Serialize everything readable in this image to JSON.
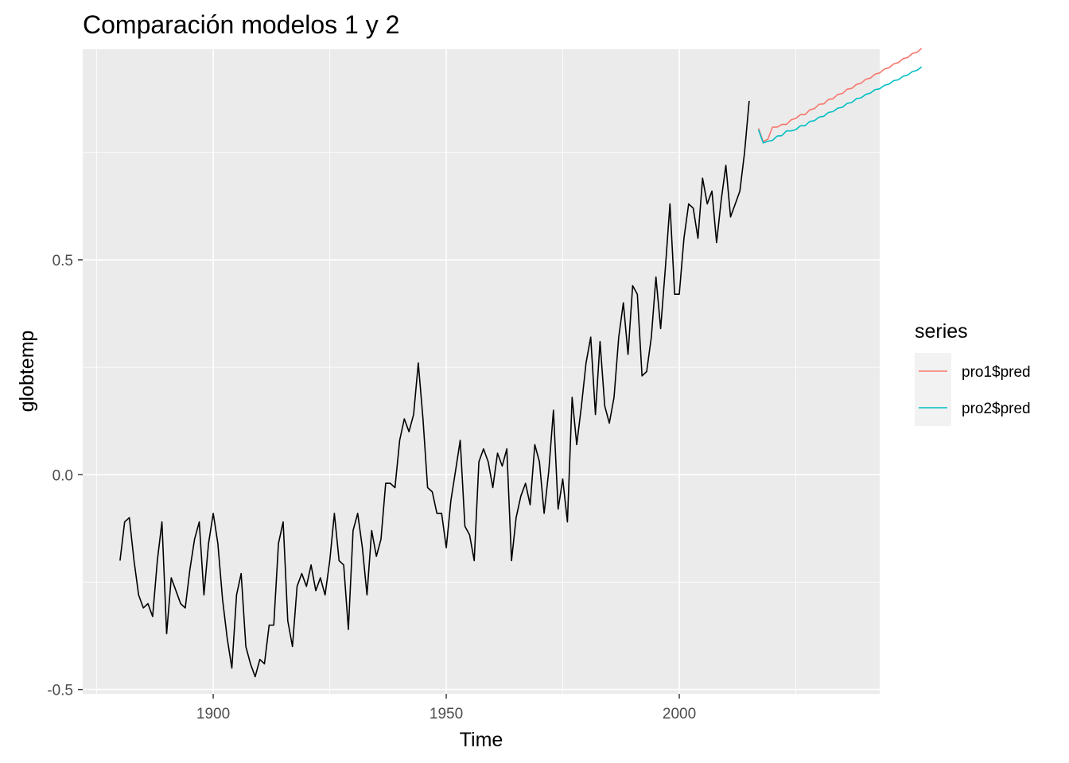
{
  "chart_data": {
    "type": "line",
    "title": "Comparación modelos 1 y 2",
    "xlabel": "Time",
    "ylabel": "globtemp",
    "xlim": [
      1872,
      2043
    ],
    "ylim": [
      -0.51,
      0.99
    ],
    "x_ticks": [
      1900,
      1950,
      2000
    ],
    "x_tick_labels": [
      "1900",
      "1950",
      "2000"
    ],
    "y_ticks": [
      -0.5,
      0.0,
      0.5
    ],
    "y_tick_labels": [
      "-0.5",
      "0.0",
      "0.5"
    ],
    "grid": true,
    "legend": {
      "title": "series",
      "placement": "right",
      "entries": [
        {
          "label": "pro1$pred",
          "color": "#F8766D"
        },
        {
          "label": "pro2$pred",
          "color": "#00BFC4"
        }
      ]
    },
    "observed": {
      "color": "#000000",
      "start": 1880,
      "values": [
        -0.2,
        -0.11,
        -0.1,
        -0.2,
        -0.28,
        -0.31,
        -0.3,
        -0.33,
        -0.2,
        -0.11,
        -0.37,
        -0.24,
        -0.27,
        -0.3,
        -0.31,
        -0.22,
        -0.15,
        -0.11,
        -0.28,
        -0.16,
        -0.09,
        -0.16,
        -0.29,
        -0.38,
        -0.45,
        -0.28,
        -0.23,
        -0.4,
        -0.44,
        -0.47,
        -0.43,
        -0.44,
        -0.35,
        -0.35,
        -0.16,
        -0.11,
        -0.34,
        -0.4,
        -0.26,
        -0.23,
        -0.26,
        -0.21,
        -0.27,
        -0.24,
        -0.28,
        -0.2,
        -0.09,
        -0.2,
        -0.21,
        -0.36,
        -0.13,
        -0.09,
        -0.17,
        -0.28,
        -0.13,
        -0.19,
        -0.15,
        -0.02,
        -0.02,
        -0.03,
        0.08,
        0.13,
        0.1,
        0.14,
        0.26,
        0.13,
        -0.03,
        -0.04,
        -0.09,
        -0.09,
        -0.17,
        -0.06,
        0.01,
        0.08,
        -0.12,
        -0.14,
        -0.2,
        0.03,
        0.06,
        0.03,
        -0.03,
        0.05,
        0.02,
        0.06,
        -0.2,
        -0.1,
        -0.05,
        -0.02,
        -0.07,
        0.07,
        0.03,
        -0.09,
        0.01,
        0.15,
        -0.08,
        -0.01,
        -0.11,
        0.18,
        0.07,
        0.16,
        0.26,
        0.32,
        0.14,
        0.31,
        0.16,
        0.12,
        0.18,
        0.32,
        0.4,
        0.28,
        0.44,
        0.42,
        0.23,
        0.24,
        0.32,
        0.46,
        0.34,
        0.48,
        0.63,
        0.42,
        0.42,
        0.55,
        0.63,
        0.62,
        0.55,
        0.69,
        0.63,
        0.66,
        0.54,
        0.64,
        0.72,
        0.6,
        0.63,
        0.66,
        0.75,
        0.87
      ]
    },
    "series": [
      {
        "name": "pro1$pred",
        "color": "#F8766D",
        "start": 2017,
        "values": [
          0.806,
          0.775,
          0.781,
          0.809,
          0.809,
          0.815,
          0.815,
          0.826,
          0.829,
          0.838,
          0.838,
          0.849,
          0.852,
          0.862,
          0.863,
          0.873,
          0.875,
          0.885,
          0.887,
          0.897,
          0.899,
          0.908,
          0.911,
          0.92,
          0.923,
          0.932,
          0.935,
          0.944,
          0.947,
          0.956,
          0.959,
          0.968,
          0.971,
          0.98,
          0.983,
          0.992
        ]
      },
      {
        "name": "pro2$pred",
        "color": "#00BFC4",
        "start": 2017,
        "values": [
          0.803,
          0.772,
          0.776,
          0.778,
          0.788,
          0.789,
          0.8,
          0.8,
          0.803,
          0.812,
          0.812,
          0.822,
          0.824,
          0.832,
          0.834,
          0.843,
          0.845,
          0.853,
          0.855,
          0.864,
          0.866,
          0.875,
          0.877,
          0.885,
          0.888,
          0.896,
          0.898,
          0.906,
          0.909,
          0.917,
          0.919,
          0.927,
          0.93,
          0.938,
          0.941,
          0.949
        ]
      }
    ]
  }
}
